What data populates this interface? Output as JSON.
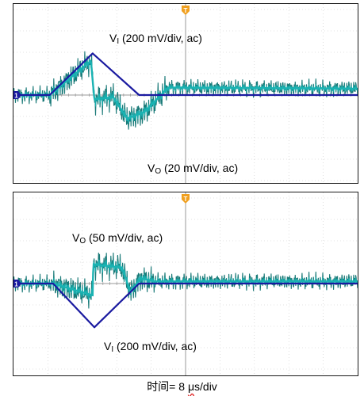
{
  "chart_data": [
    {
      "type": "line",
      "panel": "top",
      "series": [
        {
          "name": "VI",
          "scale": "200 mV/div, ac",
          "color": "#1a1aa0",
          "x_div": [
            0,
            1.05,
            2.3,
            3.65,
            10
          ],
          "y_div": [
            0,
            0,
            1.95,
            0,
            0
          ]
        },
        {
          "name": "VO",
          "scale": "20 mV/div, ac",
          "color": "#1ab3b3",
          "x_div": [
            0,
            1.05,
            2.25,
            2.35,
            2.9,
            3.3,
            3.8,
            4.5,
            10
          ],
          "y_div": [
            0,
            0,
            1.6,
            -0.2,
            -0.1,
            -1.1,
            -0.8,
            0.35,
            0.3
          ]
        }
      ],
      "annotations": [
        {
          "series": "VI",
          "text_main": "V",
          "text_sub": "I",
          "text_rest": " (200 mV/div, ac)"
        },
        {
          "series": "VO",
          "text_main": "V",
          "text_sub": "O",
          "text_rest": " (20 mV/div, ac)"
        }
      ],
      "grid": true,
      "legend": "inline"
    },
    {
      "type": "line",
      "panel": "bottom",
      "series": [
        {
          "name": "VI",
          "scale": "200 mV/div, ac",
          "color": "#1a1aa0",
          "x_div": [
            0,
            1.15,
            2.35,
            3.65,
            10
          ],
          "y_div": [
            0,
            0,
            -2.05,
            0,
            0
          ]
        },
        {
          "name": "VO",
          "scale": "50 mV/div, ac",
          "color": "#1ab3b3",
          "x_div": [
            0,
            1.15,
            2.3,
            2.32,
            3.15,
            3.4,
            3.7,
            4.1,
            10
          ],
          "y_div": [
            0,
            0,
            -0.55,
            0.9,
            0.75,
            -0.4,
            0.25,
            0.1,
            0.1
          ]
        }
      ],
      "annotations": [
        {
          "series": "VO",
          "text_main": "V",
          "text_sub": "O",
          "text_rest": " (50 mV/div, ac)"
        },
        {
          "series": "VI",
          "text_main": "V",
          "text_sub": "I",
          "text_rest": " (200 mV/div, ac)"
        }
      ],
      "grid": true,
      "legend": "inline"
    }
  ],
  "xaxis_label": {
    "prefix": "时间= 8 ",
    "unit_mu": "μ",
    "suffix": "s/div"
  },
  "markers": {
    "trigger": "T",
    "ground": "1"
  },
  "colors": {
    "vi": "#1a1aa0",
    "vo": "#1ab3b3",
    "vo_dark": "#1a7a78",
    "marker": "#f0a020",
    "ground": "#1a1aa0"
  }
}
